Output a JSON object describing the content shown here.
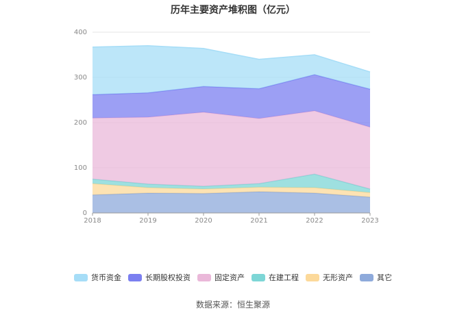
{
  "chart_data": {
    "type": "area",
    "stacked": true,
    "title": "历年主要资产堆积图（亿元）",
    "xlabel": "",
    "ylabel": "",
    "categories": [
      "2018",
      "2019",
      "2020",
      "2021",
      "2022",
      "2023"
    ],
    "ylim": [
      0,
      400
    ],
    "yticks": [
      0,
      100,
      200,
      300,
      400
    ],
    "grid": true,
    "legend_position": "bottom",
    "series": [
      {
        "name": "其它",
        "color": "#8eaadb",
        "values": [
          40,
          44,
          43,
          47,
          44,
          35
        ]
      },
      {
        "name": "无形资产",
        "color": "#fcd99a",
        "values": [
          25,
          12,
          10,
          10,
          12,
          10
        ]
      },
      {
        "name": "在建工程",
        "color": "#7dd6d6",
        "values": [
          10,
          8,
          6,
          8,
          30,
          8
        ]
      },
      {
        "name": "固定资产",
        "color": "#eab8d9",
        "values": [
          135,
          148,
          164,
          144,
          140,
          137
        ]
      },
      {
        "name": "长期股权投资",
        "color": "#7b7ff0",
        "values": [
          52,
          54,
          57,
          66,
          80,
          84
        ]
      },
      {
        "name": "货币资金",
        "color": "#a6ddf7",
        "values": [
          105,
          104,
          84,
          65,
          44,
          38
        ]
      }
    ]
  },
  "legend_order": [
    "货币资金",
    "长期股权投资",
    "固定资产",
    "在建工程",
    "无形资产",
    "其它"
  ],
  "source": "数据来源：恒生聚源"
}
